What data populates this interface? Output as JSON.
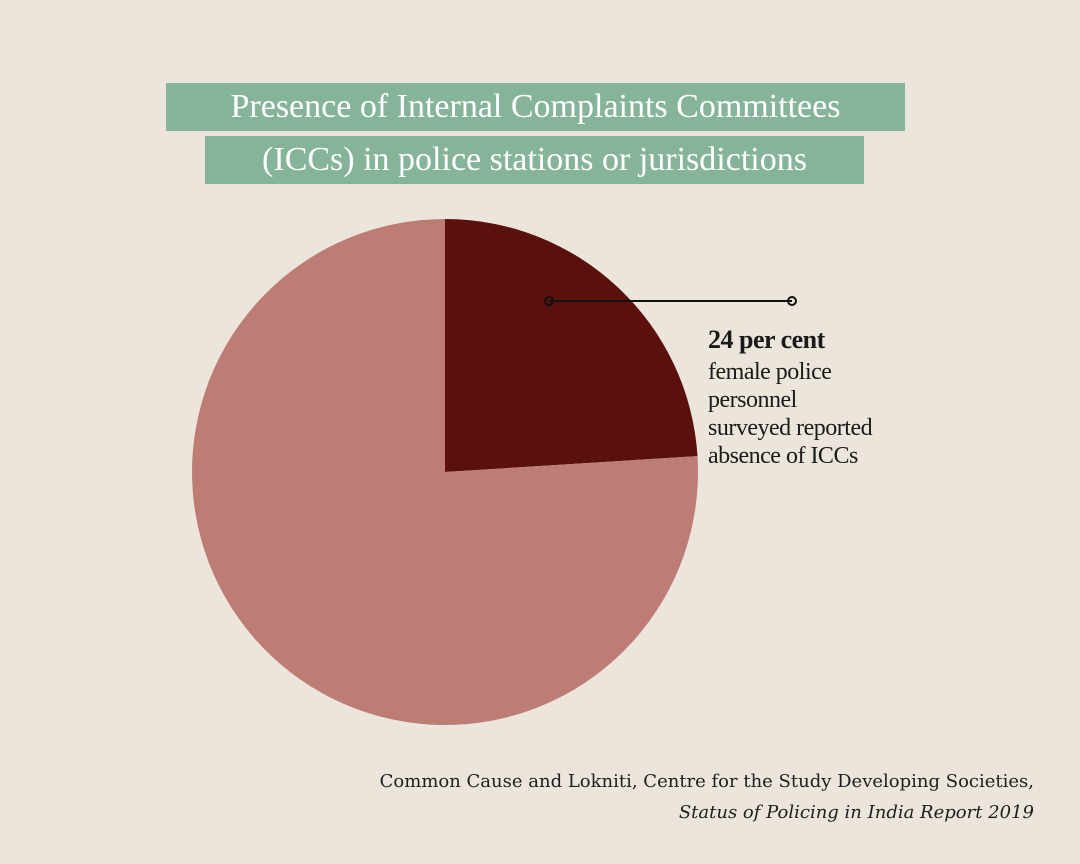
{
  "title": {
    "line1": "Presence of Internal Complaints Committees",
    "line2": "(ICCs) in police stations or jurisdictions"
  },
  "chart_data": {
    "type": "pie",
    "title": "Presence of Internal Complaints Committees (ICCs) in police stations or jurisdictions",
    "slices": [
      {
        "label": "absence of ICCs",
        "value": 24,
        "color": "#5a110b"
      },
      {
        "label": "",
        "value": 76,
        "color": "#bd7d74"
      }
    ],
    "start_angle_deg": 0,
    "direction": "clockwise",
    "annotation": {
      "value_label": "24 per cent",
      "description_lines": [
        "female police",
        "personnel",
        "surveyed reported",
        "absence of ICCs"
      ]
    }
  },
  "source": {
    "line1": "Common Cause and Lokniti, Centre for the Study Developing Societies,",
    "line2": "Status of Policing in India Report 2019"
  },
  "colors": {
    "background": "#ebe5dc",
    "title_band": "#85b49b",
    "leader_line": "#111111"
  }
}
